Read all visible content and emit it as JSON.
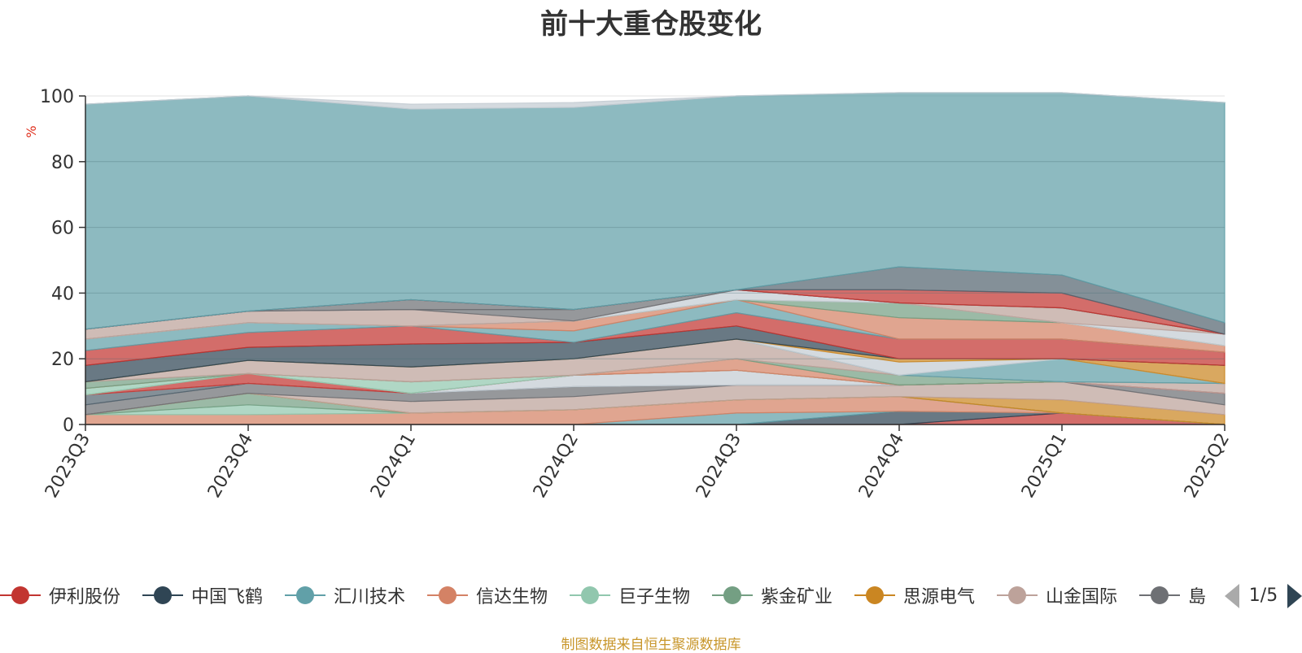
{
  "chart_data": {
    "type": "area",
    "stacked": true,
    "title": "前十大重仓股变化",
    "ylabel": "%",
    "ylim": [
      0,
      100
    ],
    "y_ticks": [
      "0",
      "20",
      "40",
      "60",
      "80",
      "100"
    ],
    "categories": [
      "2023Q3",
      "2023Q4",
      "2024Q1",
      "2024Q2",
      "2024Q3",
      "2024Q4",
      "2025Q1",
      "2025Q2"
    ],
    "grid": true,
    "legend_position": "bottom",
    "series": [
      {
        "name": "伊利股份",
        "color": "#c23531",
        "values": [
          0,
          0,
          0,
          0,
          0,
          0,
          3.5,
          0
        ]
      },
      {
        "name": "中国飞鹤",
        "color": "#2f4554",
        "values": [
          0,
          0,
          0,
          0,
          0,
          4,
          0,
          0
        ]
      },
      {
        "name": "汇川技术",
        "color": "#61a0a8",
        "values": [
          0,
          0,
          0,
          0,
          3.5,
          0,
          0,
          0
        ]
      },
      {
        "name": "信达生物",
        "color": "#d48265",
        "values": [
          3,
          3,
          3.5,
          4.5,
          4,
          4.5,
          0,
          0
        ]
      },
      {
        "name": "巨子生物",
        "color": "#91c7ae",
        "values": [
          0,
          3,
          0,
          0,
          0,
          0,
          0,
          0
        ]
      },
      {
        "name": "紫金矿业",
        "color": "#749f83",
        "values": [
          0,
          3.5,
          0,
          0,
          0,
          0,
          0,
          0
        ]
      },
      {
        "name": "思源电气",
        "color": "#ca8622",
        "values": [
          0,
          0,
          0,
          0,
          0,
          0,
          4,
          3
        ]
      },
      {
        "name": "山金国际",
        "color": "#bda29a",
        "values": [
          0,
          0,
          3.5,
          4,
          4.5,
          3.5,
          5.5,
          3
        ]
      },
      {
        "color": "#6e7074",
        "values": [
          3,
          3,
          2.5,
          3,
          0,
          0,
          0,
          3.5
        ]
      },
      {
        "color": "#546570",
        "values": [
          3,
          0,
          0,
          0,
          0,
          0,
          0,
          0
        ]
      },
      {
        "color": "#c4ccd3",
        "values": [
          0,
          0,
          0,
          3.5,
          4.5,
          0,
          0,
          0
        ]
      },
      {
        "color": "#c23531",
        "values": [
          0,
          3,
          0,
          0,
          0,
          0,
          0,
          0
        ]
      },
      {
        "color": "#bda29a",
        "values": [
          0,
          0,
          0,
          0,
          0,
          0,
          0,
          3
        ]
      },
      {
        "color": "#91c7ae",
        "values": [
          2,
          0,
          3.5,
          0,
          0,
          0,
          0,
          0
        ]
      },
      {
        "color": "#d48265",
        "values": [
          0,
          0,
          0,
          0,
          3.5,
          0,
          0,
          0
        ]
      },
      {
        "color": "#749f83",
        "values": [
          2,
          0,
          0,
          0,
          0,
          3,
          0,
          0
        ]
      },
      {
        "color": "#bda29a",
        "values": [
          0,
          4,
          4.5,
          5,
          6,
          0,
          0,
          0
        ]
      },
      {
        "color": "#61a0a8",
        "values": [
          0,
          0,
          0,
          0,
          0,
          0,
          7,
          0
        ]
      },
      {
        "color": "#c4ccd3",
        "values": [
          0,
          0,
          0,
          0,
          0,
          4,
          0,
          0
        ]
      },
      {
        "color": "#ca8622",
        "values": [
          0,
          0,
          0,
          0,
          0,
          1,
          0,
          5.5
        ]
      },
      {
        "color": "#2f4554",
        "values": [
          5,
          4,
          7,
          5,
          4,
          0,
          0,
          0
        ]
      },
      {
        "color": "#c23531",
        "values": [
          4.5,
          4.5,
          5.5,
          0,
          4,
          6,
          6,
          4
        ]
      },
      {
        "color": "#61a0a8",
        "values": [
          3.5,
          3,
          0,
          3.5,
          4,
          0,
          0,
          0
        ]
      },
      {
        "color": "#d48265",
        "values": [
          0,
          0,
          0,
          3,
          0,
          6.5,
          5,
          2
        ]
      },
      {
        "color": "#749f83",
        "values": [
          0,
          0,
          0,
          0,
          0,
          4.5,
          0,
          0
        ]
      },
      {
        "color": "#c4ccd3",
        "values": [
          0,
          0,
          0,
          0,
          3,
          0,
          0,
          3.5
        ]
      },
      {
        "color": "#bda29a",
        "values": [
          3,
          3.5,
          5,
          0,
          0,
          0,
          4.5,
          0
        ]
      },
      {
        "color": "#6e7074",
        "values": [
          0,
          0,
          0,
          3.5,
          0,
          0,
          0,
          0
        ]
      },
      {
        "color": "#6e7074",
        "values": [
          0,
          0,
          3,
          0,
          0,
          0,
          0,
          0
        ]
      },
      {
        "color": "#c23531",
        "values": [
          0,
          0,
          0,
          0,
          0,
          4,
          4.5,
          0
        ]
      },
      {
        "color": "#546570",
        "values": [
          0,
          0,
          0,
          0,
          0,
          7,
          5.5,
          3.5
        ]
      },
      {
        "color": "#61a0a8",
        "values": [
          68.5,
          65.5,
          58,
          61.5,
          59,
          53,
          55.5,
          67
        ]
      },
      {
        "color": "#c4ccd3",
        "values": [
          0,
          0,
          1.5,
          1.5,
          0,
          0,
          0,
          0
        ]
      }
    ]
  },
  "legend_items": [
    {
      "label": "伊利股份",
      "color": "#c23531"
    },
    {
      "label": "中国飞鹤",
      "color": "#2f4554"
    },
    {
      "label": "汇川技术",
      "color": "#61a0a8"
    },
    {
      "label": "信达生物",
      "color": "#d48265"
    },
    {
      "label": "巨子生物",
      "color": "#91c7ae"
    },
    {
      "label": "紫金矿业",
      "color": "#749f83"
    },
    {
      "label": "思源电气",
      "color": "#ca8622"
    },
    {
      "label": "山金国际",
      "color": "#bda29a"
    },
    {
      "label": "島",
      "color": "#6e7074"
    }
  ],
  "legend_pager": {
    "text": "1/5"
  },
  "source_note": "制图数据来自恒生聚源数据库"
}
